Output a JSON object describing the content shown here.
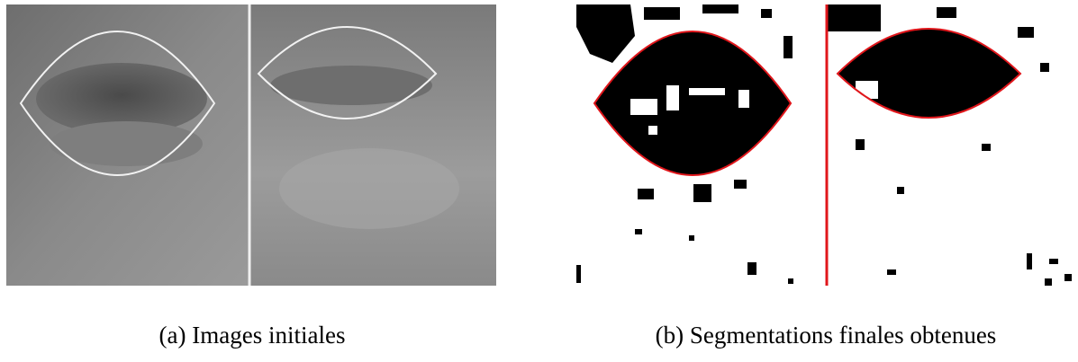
{
  "figure": {
    "captions": [
      "(a) Images initiales",
      "(b) Segmentations finales obtenues"
    ]
  }
}
